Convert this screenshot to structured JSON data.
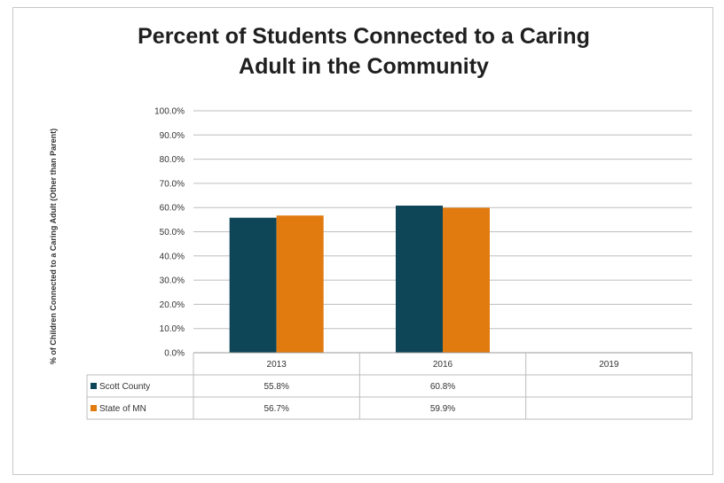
{
  "chart_data": {
    "type": "bar",
    "title": "Percent of Students Connected to a Caring Adult in the Community",
    "title_lines": [
      "Percent of Students Connected to a Caring",
      "Adult in the Community"
    ],
    "ylabel": "% of Children Connected to a Caring Adult (Other than Parent)",
    "categories": [
      "2013",
      "2016",
      "2019"
    ],
    "series": [
      {
        "name": "Scott County",
        "values": [
          55.8,
          60.8,
          null
        ],
        "labels": [
          "55.8%",
          "60.8%",
          ""
        ],
        "color": "#0f4657"
      },
      {
        "name": "State of MN",
        "values": [
          56.7,
          59.9,
          null
        ],
        "labels": [
          "56.7%",
          "59.9%",
          ""
        ],
        "color": "#e17a0f"
      }
    ],
    "ylim": [
      0,
      100
    ],
    "yticks": [
      "0.0%",
      "10.0%",
      "20.0%",
      "30.0%",
      "40.0%",
      "50.0%",
      "60.0%",
      "70.0%",
      "80.0%",
      "90.0%",
      "100.0%"
    ],
    "grid": true,
    "legend": "data-table"
  }
}
